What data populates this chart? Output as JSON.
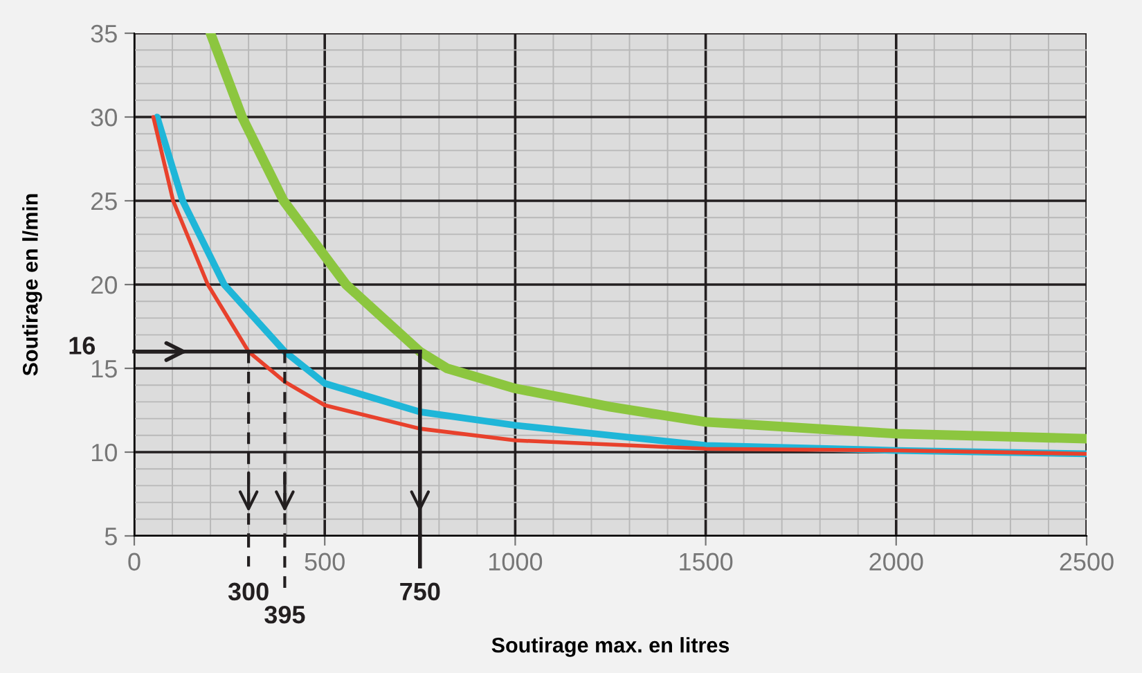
{
  "chart_data": {
    "type": "line",
    "xlabel": "Soutirage max. en litres",
    "ylabel": "Soutirage en l/min",
    "xlim": [
      0,
      2500
    ],
    "xticks": [
      0,
      500,
      1000,
      1500,
      2000,
      2500
    ],
    "ylim": [
      5,
      35
    ],
    "yticks": [
      5,
      10,
      15,
      20,
      25,
      30,
      35
    ],
    "grid": true,
    "series": [
      {
        "color": "#8cc63f",
        "x": [
          200,
          283,
          392,
          556,
          750,
          821,
          1000,
          1250,
          1500,
          2000,
          2500
        ],
        "values": [
          35,
          30,
          25,
          20,
          16,
          15,
          13.8,
          12.7,
          11.8,
          11.1,
          10.8
        ]
      },
      {
        "color": "#1fb6d8",
        "x": [
          60,
          127,
          236,
          395,
          500,
          750,
          1000,
          1500,
          2000,
          2500
        ],
        "values": [
          30,
          25,
          20,
          16,
          14.1,
          12.4,
          11.6,
          10.4,
          10.1,
          9.9
        ]
      },
      {
        "color": "#e8412c",
        "x": [
          50,
          102,
          193,
          300,
          395,
          500,
          750,
          1000,
          1500,
          2000,
          2500
        ],
        "values": [
          30,
          25,
          20,
          16,
          14.2,
          12.8,
          11.4,
          10.7,
          10.2,
          10.1,
          9.9
        ]
      }
    ],
    "ref_lines": [
      {
        "axis": "y",
        "value": 16,
        "label": "16",
        "color": "#231f20",
        "line_style": "solid"
      },
      {
        "axis": "x",
        "value": 300,
        "label": "300",
        "color": "#231f20",
        "line_style": "dashed"
      },
      {
        "axis": "x",
        "value": 395,
        "label": "395",
        "color": "#231f20",
        "line_style": "dashed"
      },
      {
        "axis": "x",
        "value": 750,
        "label": "750",
        "color": "#231f20",
        "line_style": "solid"
      }
    ]
  }
}
